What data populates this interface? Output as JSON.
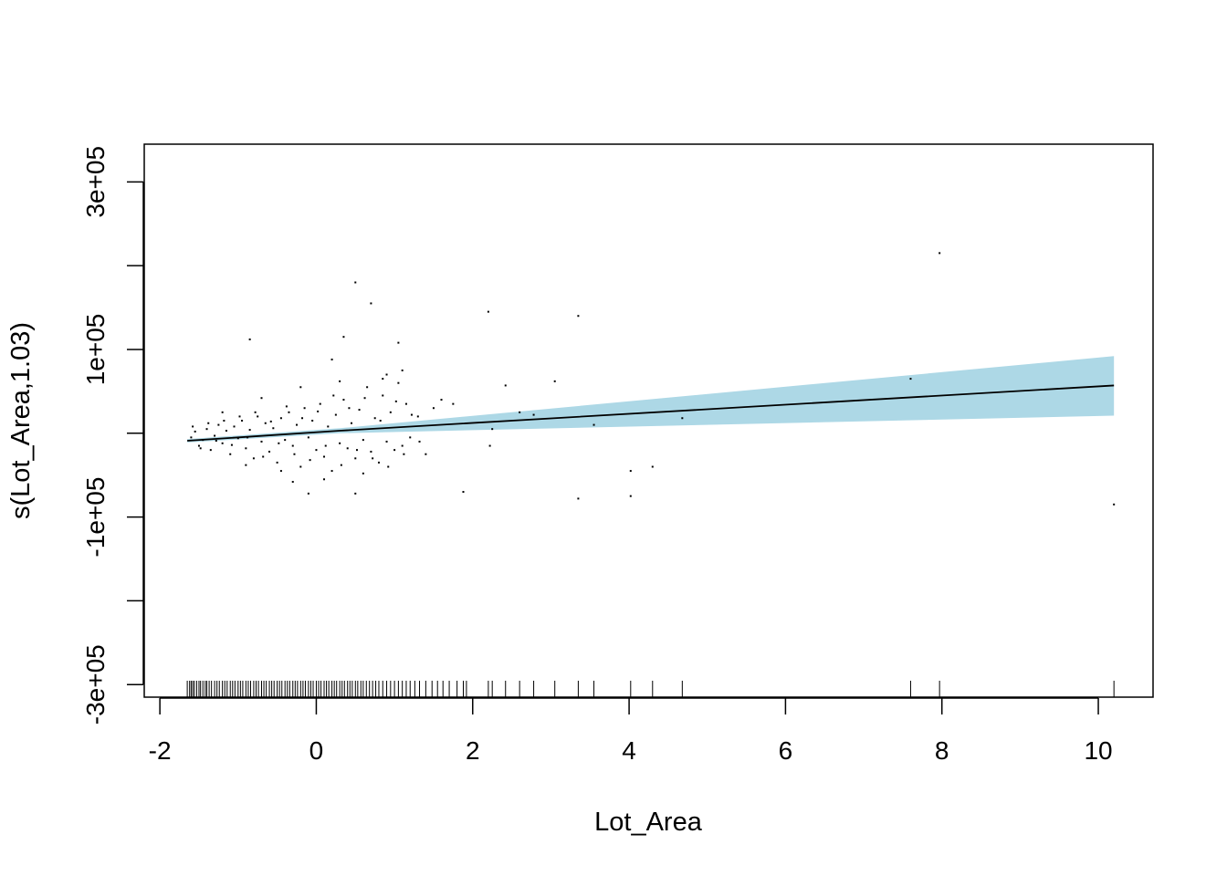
{
  "chart_data": {
    "type": "scatter",
    "title": "",
    "xlabel": "Lot_Area",
    "ylabel": "s(Lot_Area,1.03)",
    "xlim": [
      -2.2,
      10.7
    ],
    "ylim": [
      -315000,
      345000
    ],
    "x_ticks": [
      -2,
      0,
      2,
      4,
      6,
      8,
      10
    ],
    "x_tick_labels": [
      "-2",
      "0",
      "2",
      "4",
      "6",
      "8",
      "10"
    ],
    "y_ticks": [
      -300000,
      -200000,
      -100000,
      0,
      100000,
      200000,
      300000
    ],
    "y_tick_labels": [
      "-3e+05",
      "",
      "-1e+05",
      "",
      "1e+05",
      "",
      "3e+05"
    ],
    "smooth": {
      "x": [
        -1.65,
        0.3,
        10.2
      ],
      "y": [
        -9000,
        3000,
        57000
      ]
    },
    "confidence_band": {
      "x": [
        -1.65,
        0.3,
        10.2
      ],
      "upper": [
        -7000,
        6000,
        92000
      ],
      "lower": [
        -11000,
        0,
        21000
      ]
    },
    "rug_x": [
      -1.65,
      -1.62,
      -1.6,
      -1.58,
      -1.56,
      -1.53,
      -1.5,
      -1.48,
      -1.45,
      -1.42,
      -1.4,
      -1.37,
      -1.34,
      -1.3,
      -1.27,
      -1.24,
      -1.2,
      -1.17,
      -1.14,
      -1.1,
      -1.07,
      -1.04,
      -1.0,
      -0.97,
      -0.94,
      -0.9,
      -0.87,
      -0.84,
      -0.8,
      -0.77,
      -0.74,
      -0.7,
      -0.67,
      -0.64,
      -0.6,
      -0.57,
      -0.54,
      -0.5,
      -0.47,
      -0.44,
      -0.4,
      -0.37,
      -0.34,
      -0.3,
      -0.27,
      -0.24,
      -0.2,
      -0.17,
      -0.14,
      -0.1,
      -0.07,
      -0.04,
      0.0,
      0.03,
      0.06,
      0.1,
      0.13,
      0.16,
      0.2,
      0.23,
      0.26,
      0.3,
      0.33,
      0.36,
      0.4,
      0.43,
      0.46,
      0.5,
      0.53,
      0.57,
      0.6,
      0.64,
      0.68,
      0.72,
      0.76,
      0.8,
      0.85,
      0.9,
      0.95,
      1.0,
      1.05,
      1.1,
      1.15,
      1.2,
      1.26,
      1.32,
      1.4,
      1.48,
      1.55,
      1.62,
      1.7,
      1.8,
      1.88,
      1.92,
      2.2,
      2.25,
      2.42,
      2.6,
      2.78,
      3.05,
      3.35,
      3.55,
      4.02,
      4.3,
      4.68,
      7.6,
      7.97,
      10.2
    ],
    "points": [
      [
        -1.6,
        -5000
      ],
      [
        -1.55,
        2000
      ],
      [
        -1.5,
        -15000
      ],
      [
        -1.45,
        -8000
      ],
      [
        -1.4,
        5000
      ],
      [
        -1.35,
        -20000
      ],
      [
        -1.3,
        -3000
      ],
      [
        -1.25,
        10000
      ],
      [
        -1.2,
        -12000
      ],
      [
        -1.15,
        3000
      ],
      [
        -1.1,
        -25000
      ],
      [
        -1.05,
        8000
      ],
      [
        -1.0,
        -6000
      ],
      [
        -0.95,
        15000
      ],
      [
        -0.9,
        -18000
      ],
      [
        -0.85,
        4000
      ],
      [
        -0.8,
        -30000
      ],
      [
        -0.75,
        20000
      ],
      [
        -0.7,
        -10000
      ],
      [
        -0.65,
        12000
      ],
      [
        -0.6,
        -22000
      ],
      [
        -0.55,
        6000
      ],
      [
        -0.5,
        -35000
      ],
      [
        -0.45,
        18000
      ],
      [
        -0.4,
        -8000
      ],
      [
        -0.35,
        25000
      ],
      [
        -0.3,
        -15000
      ],
      [
        -0.25,
        10000
      ],
      [
        -0.2,
        -40000
      ],
      [
        -0.15,
        30000
      ],
      [
        -0.1,
        -5000
      ],
      [
        -0.05,
        15000
      ],
      [
        0.0,
        -20000
      ],
      [
        0.05,
        35000
      ],
      [
        0.1,
        -28000
      ],
      [
        0.15,
        8000
      ],
      [
        0.2,
        -45000
      ],
      [
        0.25,
        22000
      ],
      [
        0.3,
        -12000
      ],
      [
        0.35,
        40000
      ],
      [
        0.4,
        -18000
      ],
      [
        0.45,
        12000
      ],
      [
        0.5,
        -30000
      ],
      [
        0.55,
        28000
      ],
      [
        0.6,
        -8000
      ],
      [
        0.65,
        55000
      ],
      [
        0.7,
        -22000
      ],
      [
        0.75,
        18000
      ],
      [
        0.8,
        -35000
      ],
      [
        0.85,
        45000
      ],
      [
        0.9,
        -10000
      ],
      [
        0.95,
        25000
      ],
      [
        1.0,
        -20000
      ],
      [
        1.05,
        60000
      ],
      [
        1.1,
        -15000
      ],
      [
        1.15,
        35000
      ],
      [
        1.2,
        -5000
      ],
      [
        1.3,
        20000
      ],
      [
        1.4,
        -25000
      ],
      [
        1.5,
        30000
      ],
      [
        -1.58,
        8000
      ],
      [
        -1.48,
        -18000
      ],
      [
        -1.38,
        12000
      ],
      [
        -1.28,
        -9000
      ],
      [
        -1.18,
        15000
      ],
      [
        -1.08,
        -14000
      ],
      [
        -0.98,
        20000
      ],
      [
        -0.88,
        -5000
      ],
      [
        -0.78,
        25000
      ],
      [
        -0.68,
        -28000
      ],
      [
        -0.58,
        14000
      ],
      [
        -0.48,
        -12000
      ],
      [
        -0.38,
        32000
      ],
      [
        -0.28,
        -25000
      ],
      [
        -0.18,
        18000
      ],
      [
        -0.08,
        -32000
      ],
      [
        0.02,
        26000
      ],
      [
        0.12,
        -15000
      ],
      [
        0.22,
        45000
      ],
      [
        0.32,
        -38000
      ],
      [
        0.42,
        30000
      ],
      [
        0.52,
        -20000
      ],
      [
        0.62,
        42000
      ],
      [
        0.72,
        -30000
      ],
      [
        0.82,
        15000
      ],
      [
        0.92,
        -40000
      ],
      [
        1.02,
        38000
      ],
      [
        1.12,
        -25000
      ],
      [
        1.22,
        22000
      ],
      [
        1.32,
        -10000
      ],
      [
        -0.45,
        -45000
      ],
      [
        -0.2,
        55000
      ],
      [
        0.1,
        -55000
      ],
      [
        0.3,
        62000
      ],
      [
        -0.7,
        42000
      ],
      [
        -0.9,
        -38000
      ],
      [
        0.6,
        -48000
      ],
      [
        0.85,
        65000
      ],
      [
        -1.2,
        25000
      ],
      [
        -0.3,
        -58000
      ],
      [
        0.5,
        180000
      ],
      [
        0.7,
        155000
      ],
      [
        0.35,
        115000
      ],
      [
        -0.85,
        112000
      ],
      [
        1.05,
        108000
      ],
      [
        0.2,
        88000
      ],
      [
        1.1,
        75000
      ],
      [
        0.9,
        70000
      ],
      [
        -0.1,
        -72000
      ],
      [
        0.5,
        -72000
      ],
      [
        1.88,
        -70000
      ],
      [
        2.22,
        -15000
      ],
      [
        2.2,
        145000
      ],
      [
        2.25,
        5000
      ],
      [
        2.42,
        57000
      ],
      [
        2.6,
        25000
      ],
      [
        2.78,
        22000
      ],
      [
        3.05,
        62000
      ],
      [
        3.35,
        140000
      ],
      [
        3.35,
        -78000
      ],
      [
        3.55,
        10000
      ],
      [
        4.02,
        -45000
      ],
      [
        4.02,
        -75000
      ],
      [
        4.3,
        -40000
      ],
      [
        4.68,
        18000
      ],
      [
        7.6,
        65000
      ],
      [
        7.97,
        215000
      ],
      [
        10.2,
        -85000
      ],
      [
        1.6,
        40000
      ],
      [
        1.75,
        35000
      ]
    ]
  }
}
